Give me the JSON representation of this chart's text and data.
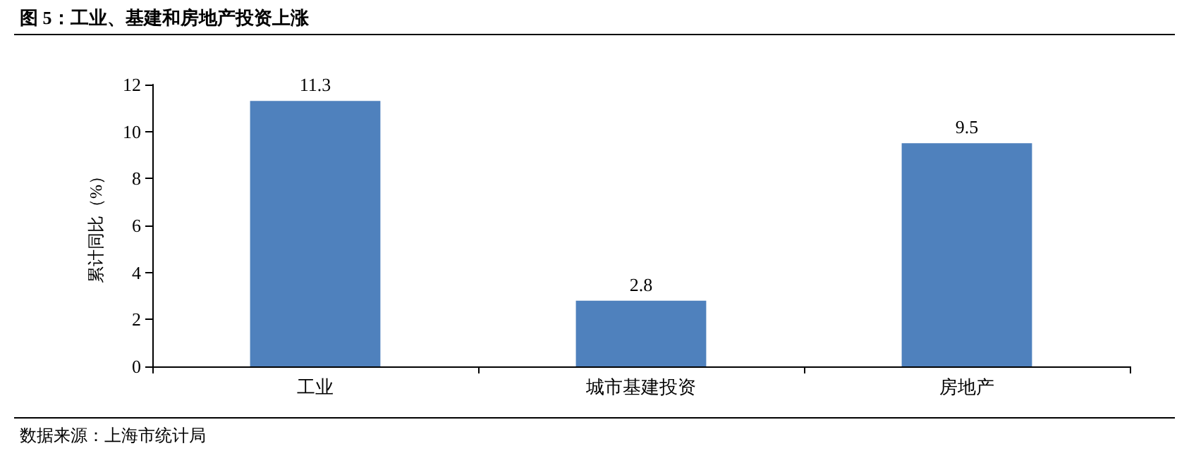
{
  "chart_data": {
    "type": "bar",
    "title": "图 5：工业、基建和房地产投资上涨",
    "ylabel": "累计同比（%）",
    "categories": [
      "工业",
      "城市基建投资",
      "房地产"
    ],
    "values": [
      11.3,
      2.8,
      9.5
    ],
    "color": "#4f81bd",
    "ylim": [
      0,
      12
    ],
    "yticks": [
      0,
      2,
      4,
      6,
      8,
      10,
      12
    ],
    "grid": false,
    "data_labels": true,
    "annotations": [
      "数据来源：上海市统计局"
    ]
  }
}
